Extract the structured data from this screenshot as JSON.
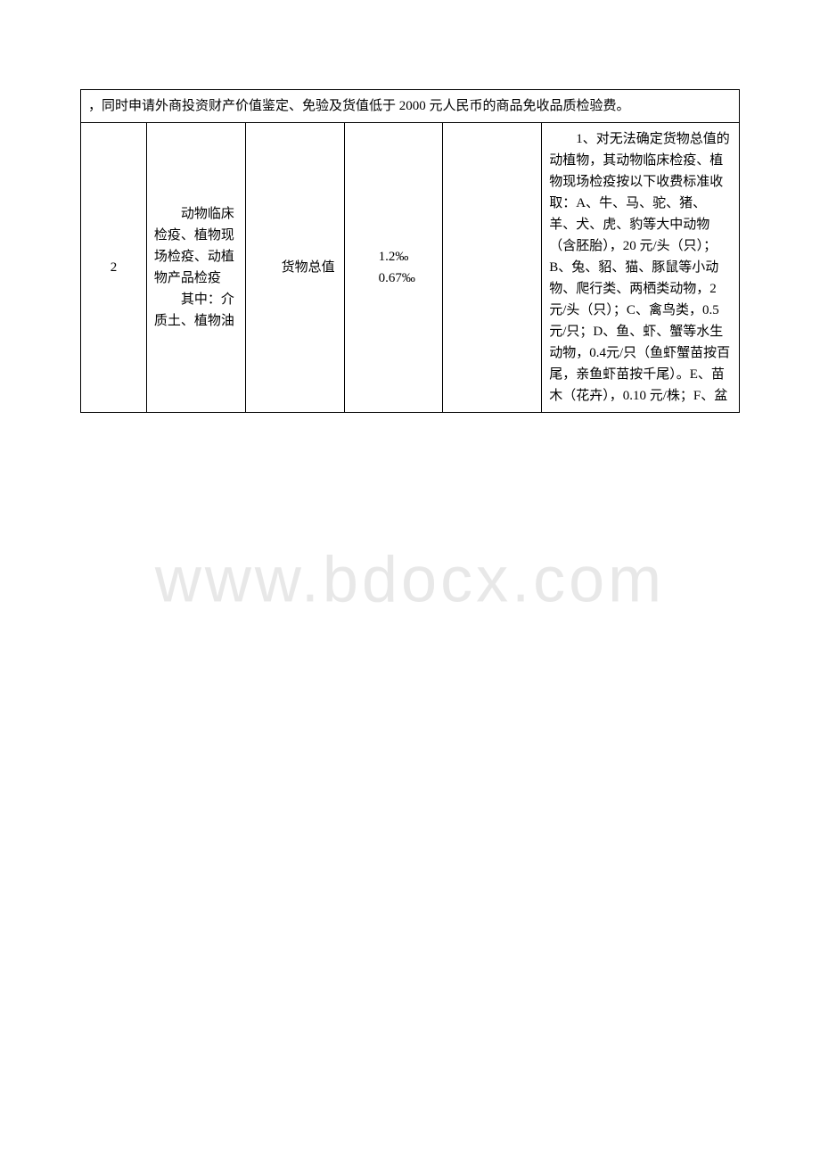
{
  "noteRow": {
    "text": "，同时申请外商投资财产价值鉴定、免验及货值低于 2000 元人民币的商品免收品质检验费。"
  },
  "watermark": "www.bdocx.com",
  "mainRow": {
    "col1": "2",
    "col2_p1": "动物临床检疫、植物现场检疫、动植物产品检疫",
    "col2_p2": "其中：介质土、植物油",
    "col3": "货物总值",
    "col4_l1": "1.2‰",
    "col4_l2": "0.67‰",
    "col5": "",
    "col6_p1": "1、对无法确定货物总值的动植物，其动物临床检疫、植物现场检疫按以下收费标准收取：A、牛、马、驼、猪、羊、犬、虎、豹等大中动物（含胚胎），20 元/头（只）；B、兔、貂、猫、豚鼠等小动物、爬行类、两栖类动物，2 元/头（只）；C、禽鸟类，0.5 元/只；D、鱼、虾、蟹等水生动物，0.4元/只（鱼虾蟹苗按百尾，亲鱼虾苗按千尾）。E、苗木（花卉），0.10 元/株；F、盆"
  }
}
